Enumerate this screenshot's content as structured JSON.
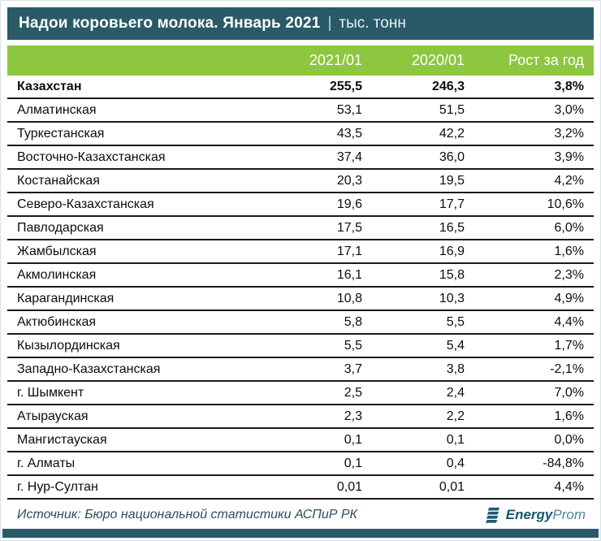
{
  "title": {
    "main": "Надои коровьего молока. Январь 2021",
    "separator": "|",
    "unit": "тыс. тонн"
  },
  "table": {
    "columns": [
      "2021/01",
      "2020/01",
      "Рост за год"
    ],
    "rows": [
      {
        "region": "Казахстан",
        "v2021": "255,5",
        "v2020": "246,3",
        "growth": "3,8%",
        "bold": true
      },
      {
        "region": "Алматинская",
        "v2021": "53,1",
        "v2020": "51,5",
        "growth": "3,0%",
        "bold": false
      },
      {
        "region": "Туркестанская",
        "v2021": "43,5",
        "v2020": "42,2",
        "growth": "3,2%",
        "bold": false
      },
      {
        "region": "Восточно-Казахстанская",
        "v2021": "37,4",
        "v2020": "36,0",
        "growth": "3,9%",
        "bold": false
      },
      {
        "region": "Костанайская",
        "v2021": "20,3",
        "v2020": "19,5",
        "growth": "4,2%",
        "bold": false
      },
      {
        "region": "Северо-Казахстанская",
        "v2021": "19,6",
        "v2020": "17,7",
        "growth": "10,6%",
        "bold": false
      },
      {
        "region": "Павлодарская",
        "v2021": "17,5",
        "v2020": "16,5",
        "growth": "6,0%",
        "bold": false
      },
      {
        "region": "Жамбылская",
        "v2021": "17,1",
        "v2020": "16,9",
        "growth": "1,6%",
        "bold": false
      },
      {
        "region": "Акмолинская",
        "v2021": "16,1",
        "v2020": "15,8",
        "growth": "2,3%",
        "bold": false
      },
      {
        "region": "Карагандинская",
        "v2021": "10,8",
        "v2020": "10,3",
        "growth": "4,9%",
        "bold": false
      },
      {
        "region": "Актюбинская",
        "v2021": "5,8",
        "v2020": "5,5",
        "growth": "4,4%",
        "bold": false
      },
      {
        "region": "Кызылординская",
        "v2021": "5,5",
        "v2020": "5,4",
        "growth": "1,7%",
        "bold": false
      },
      {
        "region": "Западно-Казахстанская",
        "v2021": "3,7",
        "v2020": "3,8",
        "growth": "-2,1%",
        "bold": false
      },
      {
        "region": "г. Шымкент",
        "v2021": "2,5",
        "v2020": "2,4",
        "growth": "7,0%",
        "bold": false
      },
      {
        "region": "Атырауская",
        "v2021": "2,3",
        "v2020": "2,2",
        "growth": "1,6%",
        "bold": false
      },
      {
        "region": "Мангистауская",
        "v2021": "0,1",
        "v2020": "0,1",
        "growth": "0,0%",
        "bold": false
      },
      {
        "region": "г. Алматы",
        "v2021": "0,1",
        "v2020": "0,4",
        "growth": "-84,8%",
        "bold": false
      },
      {
        "region": "г. Нур-Султан",
        "v2021": "0,01",
        "v2020": "0,01",
        "growth": "4,4%",
        "bold": false
      }
    ]
  },
  "footer": {
    "source": "Источник: Бюро национальной статистики АСПиР РК",
    "logo_bold": "Energy",
    "logo_light": "Prom"
  },
  "colors": {
    "teal": "#2a5a68",
    "green": "#8dc63f",
    "row_border": "#1a1a1a",
    "logo_dark": "#16566c",
    "logo_light": "#4f87a0"
  },
  "chart_data": {
    "type": "table",
    "title": "Надои коровьего молока. Январь 2021",
    "unit": "тыс. тонн",
    "categories": [
      "Казахстан",
      "Алматинская",
      "Туркестанская",
      "Восточно-Казахстанская",
      "Костанайская",
      "Северо-Казахстанская",
      "Павлодарская",
      "Жамбылская",
      "Акмолинская",
      "Карагандинская",
      "Актюбинская",
      "Кызылординская",
      "Западно-Казахстанская",
      "г. Шымкент",
      "Атырауская",
      "Мангистауская",
      "г. Алматы",
      "г. Нур-Султан"
    ],
    "series": [
      {
        "name": "2021/01",
        "values": [
          255.5,
          53.1,
          43.5,
          37.4,
          20.3,
          19.6,
          17.5,
          17.1,
          16.1,
          10.8,
          5.8,
          5.5,
          3.7,
          2.5,
          2.3,
          0.1,
          0.1,
          0.01
        ]
      },
      {
        "name": "2020/01",
        "values": [
          246.3,
          51.5,
          42.2,
          36.0,
          19.5,
          17.7,
          16.5,
          16.9,
          15.8,
          10.3,
          5.5,
          5.4,
          3.8,
          2.4,
          2.2,
          0.1,
          0.4,
          0.01
        ]
      },
      {
        "name": "Рост за год, %",
        "values": [
          3.8,
          3.0,
          3.2,
          3.9,
          4.2,
          10.6,
          6.0,
          1.6,
          2.3,
          4.9,
          4.4,
          1.7,
          -2.1,
          7.0,
          1.6,
          0.0,
          -84.8,
          4.4
        ]
      }
    ],
    "source": "Бюро национальной статистики АСПиР РК"
  }
}
